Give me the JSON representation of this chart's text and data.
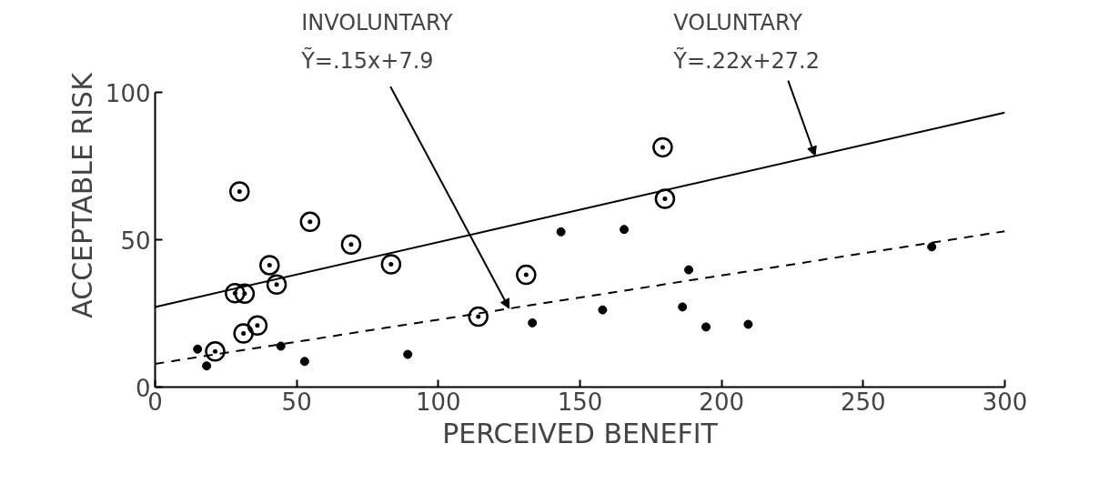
{
  "chart_data": {
    "type": "scatter",
    "xlabel": "PERCEIVED BENEFIT",
    "ylabel": "ACCEPTABLE RISK",
    "xlim": [
      0,
      300
    ],
    "ylim": [
      0,
      100
    ],
    "xticks": [
      0,
      50,
      100,
      150,
      200,
      250,
      300
    ],
    "yticks": [
      0,
      50,
      100
    ],
    "grid": false,
    "series": [
      {
        "type": "scatter",
        "marker": "circle",
        "color": "#000000",
        "x": [
          29.8,
          54.7,
          69.2,
          40.4,
          83.3,
          42.9,
          28.2,
          31.6,
          36.1,
          31.2,
          21.2,
          114.1,
          179.2,
          180,
          131
        ],
        "values": [
          66.4,
          56.1,
          48.4,
          41.4,
          41.7,
          34.8,
          31.9,
          31.7,
          20.9,
          18.2,
          12.1,
          23.9,
          81.4,
          63.9,
          38.1
        ]
      },
      {
        "type": "scatter",
        "marker": "circle",
        "color": "#000000",
        "x": [
          15,
          18.2,
          44.4,
          52.8,
          89.2,
          143.3,
          165.6,
          188.4,
          133.2,
          158,
          186.2,
          194.5,
          209.4,
          274.2
        ],
        "values": [
          12.9,
          7.2,
          13.9,
          8.7,
          11.1,
          52.7,
          53.5,
          39.8,
          21.8,
          26.2,
          27.2,
          20.4,
          21.3,
          47.6
        ]
      },
      {
        "type": "line",
        "color": "#000000",
        "line_style": "solid",
        "x": [
          0,
          300
        ],
        "values": [
          27.2,
          93.2
        ]
      },
      {
        "type": "line",
        "color": "#000000",
        "line_style": "dashed",
        "x": [
          0,
          300
        ],
        "values": [
          7.9,
          52.9
        ]
      }
    ],
    "annotations": [
      {
        "text": "INVOLUNTARY\nỸ=.15x+7.9",
        "x": 125,
        "y": 26.7
      },
      {
        "text": "VOLUNTARY\nỸ=.22x+27.2",
        "x": 233,
        "y": 78.5
      }
    ]
  }
}
